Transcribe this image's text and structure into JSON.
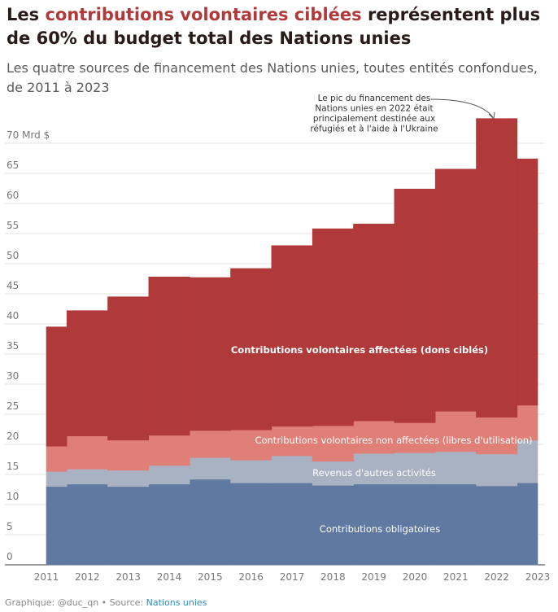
{
  "chart_data": {
    "type": "step-area",
    "title": {
      "before": "Les",
      "highlight": "contributions volontaires ciblées",
      "after": "représentent plus de 60% du budget total des Nations unies"
    },
    "subtitle": "Les quatre sources de financement des Nations unies, toutes entités confondues, de 2011 à 2023",
    "x": [
      2011,
      2012,
      2013,
      2014,
      2015,
      2016,
      2017,
      2018,
      2019,
      2020,
      2021,
      2022,
      2023
    ],
    "xlim": [
      2011,
      2023
    ],
    "xticks": [
      2011,
      2012,
      2013,
      2014,
      2015,
      2016,
      2017,
      2018,
      2019,
      2020,
      2021,
      2022,
      2023
    ],
    "ylim": [
      0,
      75
    ],
    "yticks": [
      0,
      5,
      10,
      15,
      20,
      25,
      30,
      35,
      40,
      45,
      50,
      55,
      60,
      65,
      {
        "value": 70,
        "label": "70 Mrd $"
      }
    ],
    "grid": true,
    "stacked": true,
    "series": [
      {
        "name": "Contributions obligatoires",
        "color": "#5f79a0",
        "values": [
          13.0,
          13.4,
          13.0,
          13.4,
          14.2,
          13.6,
          13.6,
          13.2,
          13.4,
          13.4,
          13.4,
          13.1,
          13.6
        ]
      },
      {
        "name": "Revenus d'autres activités",
        "color": "#a8b2c2",
        "values": [
          2.5,
          2.5,
          2.7,
          3.1,
          3.6,
          3.8,
          4.5,
          4.0,
          5.1,
          5.2,
          5.4,
          5.3,
          7.1
        ]
      },
      {
        "name": "Contributions volontaires non affectées (libres d'utilisation)",
        "color": "#e07f77",
        "values": [
          4.2,
          5.5,
          5.0,
          5.0,
          4.5,
          5.0,
          4.9,
          5.9,
          5.4,
          5.0,
          6.7,
          6.1,
          5.8
        ]
      },
      {
        "name": "Contributions volontaires affectées (dons ciblés)",
        "color": "#b0393a",
        "values": [
          19.8,
          20.8,
          23.8,
          26.3,
          25.4,
          26.8,
          30.0,
          32.7,
          32.7,
          38.8,
          40.2,
          49.6,
          40.9
        ]
      }
    ],
    "annotation": {
      "lines": [
        "Le pic du financement des",
        "Nations unies en 2022 était",
        "principalement destinée aux",
        "réfugiés et à l'aide à l'Ukraine"
      ]
    },
    "source": {
      "text": "Graphique: @duc_qn • Source:",
      "link": "Nations unies"
    }
  }
}
